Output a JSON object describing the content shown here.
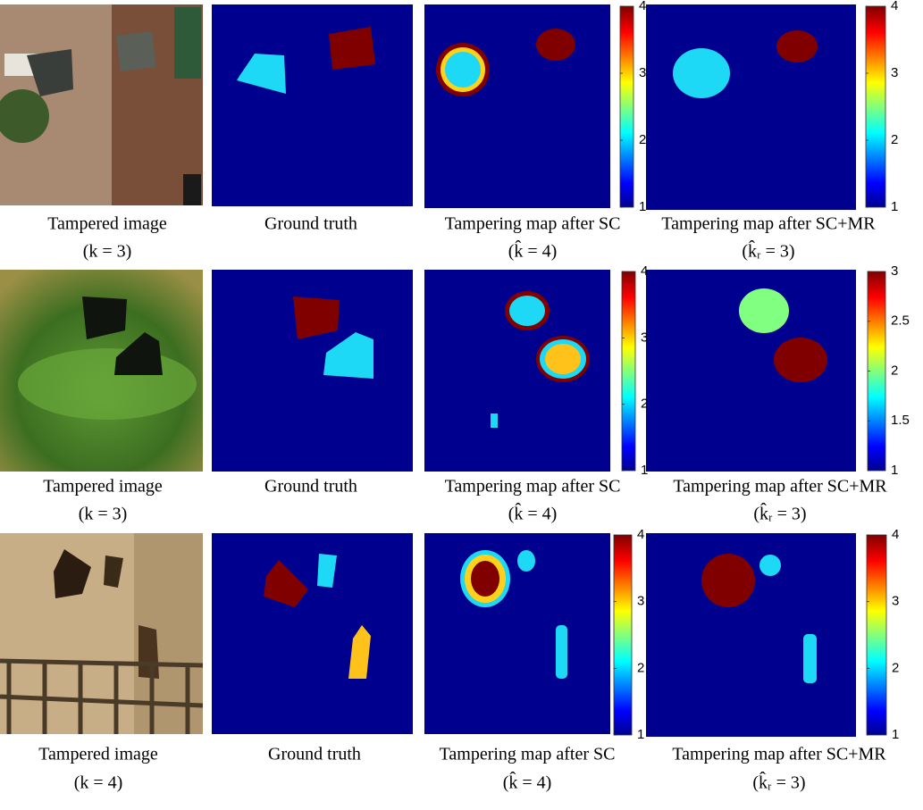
{
  "rows": [
    {
      "panels": [
        {
          "caption": "Tampered image",
          "subcaption": "(k = 3)"
        },
        {
          "caption": "Ground truth"
        },
        {
          "caption": "Tampering map after SC",
          "subcaption": "(k̂ = 4)"
        },
        {
          "caption": "Tampering map after SC+MR",
          "subcaption": "(k̂ᵣ = 3)"
        }
      ],
      "colorbars": [
        {
          "ticks": [
            1,
            2,
            3,
            4
          ]
        },
        {
          "ticks": [
            1,
            2,
            3,
            4
          ]
        }
      ]
    },
    {
      "panels": [
        {
          "caption": "Tampered image",
          "subcaption": "(k = 3)"
        },
        {
          "caption": "Ground truth"
        },
        {
          "caption": "Tampering map after SC",
          "subcaption": "(k̂ = 4)"
        },
        {
          "caption": "Tampering map after SC+MR",
          "subcaption": "(k̂ᵣ = 3)"
        }
      ],
      "colorbars": [
        {
          "ticks": [
            1,
            2,
            3,
            4
          ]
        },
        {
          "ticks": [
            1,
            1.5,
            2,
            2.5,
            3
          ]
        }
      ]
    },
    {
      "panels": [
        {
          "caption": "Tampered image",
          "subcaption": "(k = 4)"
        },
        {
          "caption": "Ground truth"
        },
        {
          "caption": "Tampering map after SC",
          "subcaption": "(k̂ = 4)"
        },
        {
          "caption": "Tampering map after SC+MR",
          "subcaption": "(k̂ᵣ = 3)"
        }
      ],
      "colorbars": [
        {
          "ticks": [
            1,
            2,
            3,
            4
          ]
        },
        {
          "ticks": [
            1,
            2,
            3,
            4
          ]
        }
      ]
    }
  ]
}
